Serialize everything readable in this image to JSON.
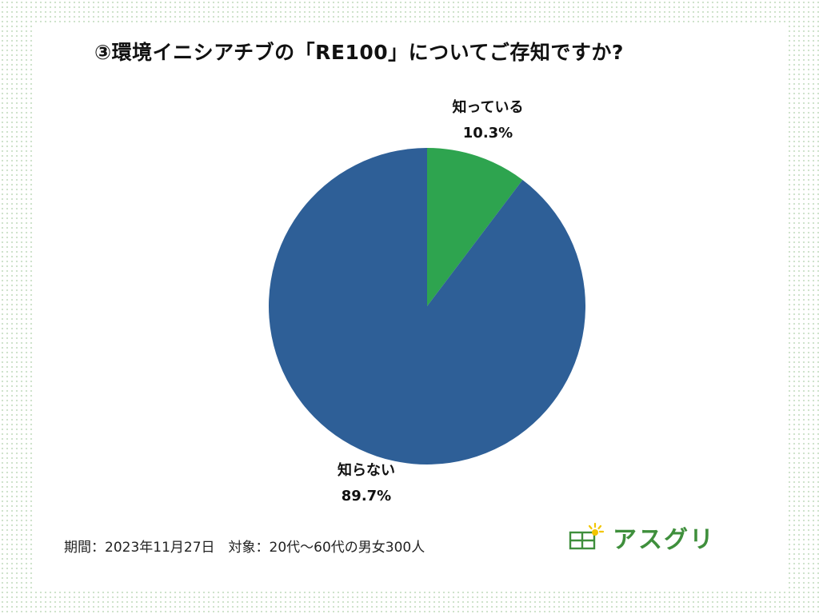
{
  "title": "③環境イニシアチブの「RE100」についてご存知ですか?",
  "footer": "期間：2023年11月27日　対象：20代〜60代の男女300人",
  "logo": {
    "text": "アスグリ",
    "icon": "house-sun-icon",
    "color": "#3f8f3c"
  },
  "chart_data": {
    "type": "pie",
    "title": "③環境イニシアチブの「RE100」についてご存知ですか?",
    "start": "top",
    "direction": "clockwise",
    "slices": [
      {
        "label": "知っている",
        "value": 10.3,
        "value_label": "10.3%",
        "color": "#2ea44f"
      },
      {
        "label": "知らない",
        "value": 89.7,
        "value_label": "89.7%",
        "color": "#2e5f97"
      }
    ]
  }
}
